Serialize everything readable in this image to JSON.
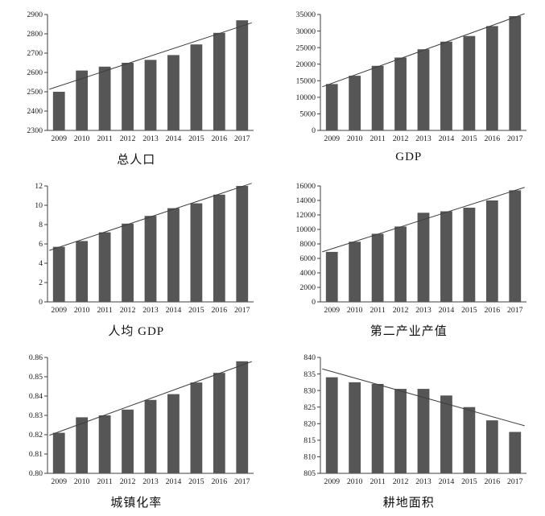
{
  "colors": {
    "bar": "#565656",
    "trend": "#3f3f3f",
    "axis": "#3f3f3f",
    "text": "#1a1a1a",
    "background": "#ffffff"
  },
  "chart_data": [
    {
      "type": "bar",
      "title": "总人口",
      "categories": [
        "2009",
        "2010",
        "2011",
        "2012",
        "2013",
        "2014",
        "2015",
        "2016",
        "2017"
      ],
      "values": [
        2500,
        2610,
        2630,
        2650,
        2665,
        2690,
        2745,
        2805,
        2870
      ],
      "ylim": [
        2300,
        2900
      ],
      "ytick": 100,
      "ydecimals": 0,
      "trendline": true,
      "grid": false,
      "legend": "none",
      "xlabel": "",
      "ylabel": ""
    },
    {
      "type": "bar",
      "title": "GDP",
      "categories": [
        "2009",
        "2010",
        "2011",
        "2012",
        "2013",
        "2014",
        "2015",
        "2016",
        "2017"
      ],
      "values": [
        14000,
        16500,
        19500,
        22000,
        24500,
        26800,
        28500,
        31500,
        34500
      ],
      "ylim": [
        0,
        35000
      ],
      "ytick": 5000,
      "ydecimals": 0,
      "trendline": true,
      "grid": false,
      "legend": "none",
      "xlabel": "",
      "ylabel": ""
    },
    {
      "type": "bar",
      "title": "人均 GDP",
      "categories": [
        "2009",
        "2010",
        "2011",
        "2012",
        "2013",
        "2014",
        "2015",
        "2016",
        "2017"
      ],
      "values": [
        5.7,
        6.3,
        7.2,
        8.1,
        8.9,
        9.7,
        10.2,
        11.1,
        12.0
      ],
      "ylim": [
        0,
        12
      ],
      "ytick": 2,
      "ydecimals": 0,
      "trendline": true,
      "grid": false,
      "legend": "none",
      "xlabel": "",
      "ylabel": ""
    },
    {
      "type": "bar",
      "title": "第二产业产值",
      "categories": [
        "2009",
        "2010",
        "2011",
        "2012",
        "2013",
        "2014",
        "2015",
        "2016",
        "2017"
      ],
      "values": [
        6900,
        8300,
        9400,
        10400,
        12300,
        12500,
        13000,
        14000,
        15400
      ],
      "ylim": [
        0,
        16000
      ],
      "ytick": 2000,
      "ydecimals": 0,
      "trendline": true,
      "grid": false,
      "legend": "none",
      "xlabel": "",
      "ylabel": ""
    },
    {
      "type": "bar",
      "title": "城镇化率",
      "categories": [
        "2009",
        "2010",
        "2011",
        "2012",
        "2013",
        "2014",
        "2015",
        "2016",
        "2017"
      ],
      "values": [
        0.821,
        0.829,
        0.83,
        0.833,
        0.838,
        0.841,
        0.847,
        0.852,
        0.858
      ],
      "ylim": [
        0.8,
        0.86
      ],
      "ytick": 0.01,
      "ydecimals": 2,
      "trendline": true,
      "grid": false,
      "legend": "none",
      "xlabel": "",
      "ylabel": ""
    },
    {
      "type": "bar",
      "title": "耕地面积",
      "categories": [
        "2009",
        "2010",
        "2011",
        "2012",
        "2013",
        "2014",
        "2015",
        "2016",
        "2017"
      ],
      "values": [
        834,
        832.5,
        832,
        830.5,
        830.5,
        828.5,
        825,
        821,
        817.5
      ],
      "ylim": [
        805,
        840
      ],
      "ytick": 5,
      "ydecimals": 0,
      "trendline": true,
      "grid": false,
      "legend": "none",
      "xlabel": "",
      "ylabel": ""
    }
  ]
}
